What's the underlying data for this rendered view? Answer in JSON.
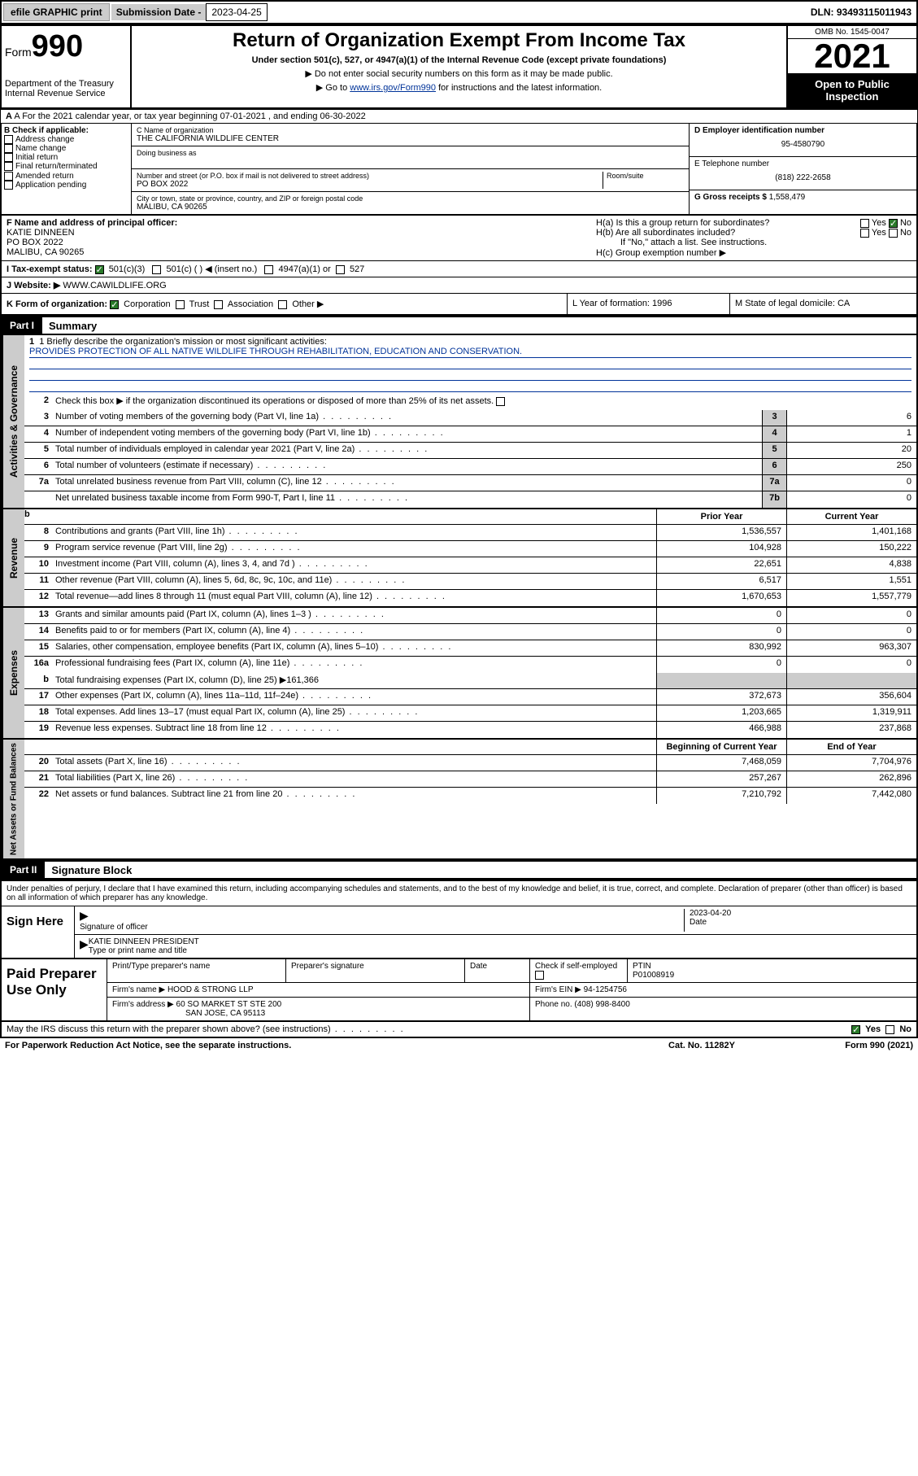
{
  "topbar": {
    "efile": "efile GRAPHIC print",
    "sub_label": "Submission Date - ",
    "sub_date": "2023-04-25",
    "dln": "DLN: 93493115011943"
  },
  "header": {
    "form_word": "Form",
    "form_num": "990",
    "dept": "Department of the Treasury\nInternal Revenue Service",
    "title": "Return of Organization Exempt From Income Tax",
    "subtitle": "Under section 501(c), 527, or 4947(a)(1) of the Internal Revenue Code (except private foundations)",
    "note1": "▶ Do not enter social security numbers on this form as it may be made public.",
    "note2_pre": "▶ Go to ",
    "note2_link": "www.irs.gov/Form990",
    "note2_post": " for instructions and the latest information.",
    "omb": "OMB No. 1545-0047",
    "year": "2021",
    "open": "Open to Public Inspection"
  },
  "rowA": "A For the 2021 calendar year, or tax year beginning 07-01-2021   , and ending 06-30-2022",
  "colB": {
    "title": "B Check if applicable:",
    "items": [
      "Address change",
      "Name change",
      "Initial return",
      "Final return/terminated",
      "Amended return",
      "Application pending"
    ]
  },
  "colC": {
    "name_label": "C Name of organization",
    "name": "THE CALIFORNIA WILDLIFE CENTER",
    "dba_label": "Doing business as",
    "addr_label": "Number and street (or P.O. box if mail is not delivered to street address)",
    "room_label": "Room/suite",
    "addr": "PO BOX 2022",
    "city_label": "City or town, state or province, country, and ZIP or foreign postal code",
    "city": "MALIBU, CA  90265"
  },
  "colDE": {
    "d_label": "D Employer identification number",
    "ein": "95-4580790",
    "e_label": "E Telephone number",
    "phone": "(818) 222-2658",
    "g_label": "G Gross receipts $ ",
    "gross": "1,558,479"
  },
  "rowF": {
    "label": "F Name and address of principal officer:",
    "name": "KATIE DINNEEN",
    "addr": "PO BOX 2022",
    "city": "MALIBU, CA  90265"
  },
  "rowH": {
    "a": "H(a)  Is this a group return for subordinates?",
    "b": "H(b)  Are all subordinates included?",
    "b_note": "If \"No,\" attach a list. See instructions.",
    "c": "H(c)  Group exemption number ▶",
    "yes": "Yes",
    "no": "No"
  },
  "rowI": {
    "label": "I   Tax-exempt status:",
    "o1": "501(c)(3)",
    "o2": "501(c) (  ) ◀ (insert no.)",
    "o3": "4947(a)(1) or",
    "o4": "527"
  },
  "rowJ": {
    "label": "J   Website: ▶ ",
    "site": "WWW.CAWILDLIFE.ORG"
  },
  "rowK": {
    "label": "K Form of organization:",
    "o1": "Corporation",
    "o2": "Trust",
    "o3": "Association",
    "o4": "Other ▶"
  },
  "rowL": "L Year of formation: 1996",
  "rowM": "M State of legal domicile: CA",
  "part1": {
    "hdr": "Part I",
    "title": "Summary"
  },
  "mission": {
    "q": "1  Briefly describe the organization's mission or most significant activities:",
    "text": "PROVIDES PROTECTION OF ALL NATIVE WILDLIFE THROUGH REHABILITATION, EDUCATION AND CONSERVATION."
  },
  "gov_side": "Activities & Governance",
  "rev_side": "Revenue",
  "exp_side": "Expenses",
  "net_side": "Net Assets or Fund Balances",
  "line2": "Check this box ▶     if the organization discontinued its operations or disposed of more than 25% of its net assets.",
  "lines_gov": [
    {
      "n": "3",
      "d": "Number of voting members of the governing body (Part VI, line 1a)",
      "b": "3",
      "v": "6"
    },
    {
      "n": "4",
      "d": "Number of independent voting members of the governing body (Part VI, line 1b)",
      "b": "4",
      "v": "1"
    },
    {
      "n": "5",
      "d": "Total number of individuals employed in calendar year 2021 (Part V, line 2a)",
      "b": "5",
      "v": "20"
    },
    {
      "n": "6",
      "d": "Total number of volunteers (estimate if necessary)",
      "b": "6",
      "v": "250"
    },
    {
      "n": "7a",
      "d": "Total unrelated business revenue from Part VIII, column (C), line 12",
      "b": "7a",
      "v": "0"
    },
    {
      "n": "",
      "d": "Net unrelated business taxable income from Form 990-T, Part I, line 11",
      "b": "7b",
      "v": "0"
    }
  ],
  "col_hdr": {
    "b": "b",
    "prior": "Prior Year",
    "current": "Current Year"
  },
  "lines_rev": [
    {
      "n": "8",
      "d": "Contributions and grants (Part VIII, line 1h)",
      "p": "1,536,557",
      "c": "1,401,168"
    },
    {
      "n": "9",
      "d": "Program service revenue (Part VIII, line 2g)",
      "p": "104,928",
      "c": "150,222"
    },
    {
      "n": "10",
      "d": "Investment income (Part VIII, column (A), lines 3, 4, and 7d )",
      "p": "22,651",
      "c": "4,838"
    },
    {
      "n": "11",
      "d": "Other revenue (Part VIII, column (A), lines 5, 6d, 8c, 9c, 10c, and 11e)",
      "p": "6,517",
      "c": "1,551"
    },
    {
      "n": "12",
      "d": "Total revenue—add lines 8 through 11 (must equal Part VIII, column (A), line 12)",
      "p": "1,670,653",
      "c": "1,557,779"
    }
  ],
  "lines_exp": [
    {
      "n": "13",
      "d": "Grants and similar amounts paid (Part IX, column (A), lines 1–3 )",
      "p": "0",
      "c": "0"
    },
    {
      "n": "14",
      "d": "Benefits paid to or for members (Part IX, column (A), line 4)",
      "p": "0",
      "c": "0"
    },
    {
      "n": "15",
      "d": "Salaries, other compensation, employee benefits (Part IX, column (A), lines 5–10)",
      "p": "830,992",
      "c": "963,307"
    },
    {
      "n": "16a",
      "d": "Professional fundraising fees (Part IX, column (A), line 11e)",
      "p": "0",
      "c": "0"
    }
  ],
  "line16b": {
    "n": "b",
    "d": "Total fundraising expenses (Part IX, column (D), line 25) ▶",
    "amt": "161,366"
  },
  "lines_exp2": [
    {
      "n": "17",
      "d": "Other expenses (Part IX, column (A), lines 11a–11d, 11f–24e)",
      "p": "372,673",
      "c": "356,604"
    },
    {
      "n": "18",
      "d": "Total expenses. Add lines 13–17 (must equal Part IX, column (A), line 25)",
      "p": "1,203,665",
      "c": "1,319,911"
    },
    {
      "n": "19",
      "d": "Revenue less expenses. Subtract line 18 from line 12",
      "p": "466,988",
      "c": "237,868"
    }
  ],
  "col_hdr2": {
    "begin": "Beginning of Current Year",
    "end": "End of Year"
  },
  "lines_net": [
    {
      "n": "20",
      "d": "Total assets (Part X, line 16)",
      "p": "7,468,059",
      "c": "7,704,976"
    },
    {
      "n": "21",
      "d": "Total liabilities (Part X, line 26)",
      "p": "257,267",
      "c": "262,896"
    },
    {
      "n": "22",
      "d": "Net assets or fund balances. Subtract line 21 from line 20",
      "p": "7,210,792",
      "c": "7,442,080"
    }
  ],
  "part2": {
    "hdr": "Part II",
    "title": "Signature Block"
  },
  "decl": "Under penalties of perjury, I declare that I have examined this return, including accompanying schedules and statements, and to the best of my knowledge and belief, it is true, correct, and complete. Declaration of preparer (other than officer) is based on all information of which preparer has any knowledge.",
  "sign": {
    "here": "Sign Here",
    "sig_label": "Signature of officer",
    "date_label": "Date",
    "date": "2023-04-20",
    "name": "KATIE DINNEEN  PRESIDENT",
    "name_label": "Type or print name and title"
  },
  "prep": {
    "title": "Paid Preparer Use Only",
    "h1": "Print/Type preparer's name",
    "h2": "Preparer's signature",
    "h3": "Date",
    "h4": "Check        if self-employed",
    "h5_l": "PTIN",
    "h5_v": "P01008919",
    "firm_l": "Firm's name    ▶",
    "firm": "HOOD & STRONG LLP",
    "ein_l": "Firm's EIN ▶",
    "ein": "94-1254756",
    "addr_l": "Firm's address ▶",
    "addr1": "60 SO MARKET ST STE 200",
    "addr2": "SAN JOSE, CA  95113",
    "ph_l": "Phone no.",
    "ph": "(408) 998-8400"
  },
  "may": "May the IRS discuss this return with the preparer shown above? (see instructions)",
  "footer": {
    "pra": "For Paperwork Reduction Act Notice, see the separate instructions.",
    "cat": "Cat. No. 11282Y",
    "form": "Form 990 (2021)"
  }
}
